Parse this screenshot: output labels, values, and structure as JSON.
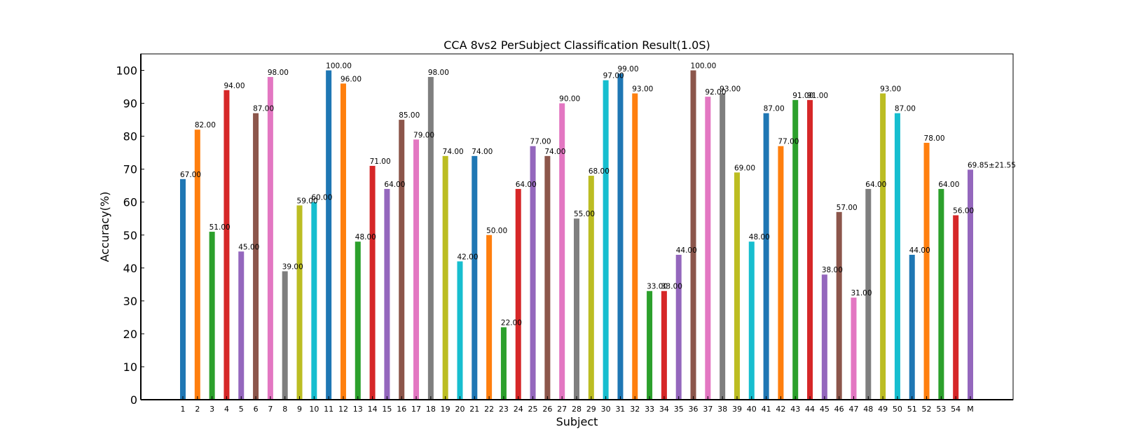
{
  "chart_data": {
    "type": "bar",
    "title": "CCA 8vs2 PerSubject Classification Result(1.0S)",
    "xlabel": "Subject",
    "ylabel": "Accuracy(%)",
    "ylim": [
      0,
      105
    ],
    "yticks": [
      0,
      10,
      20,
      30,
      40,
      50,
      60,
      70,
      80,
      90,
      100
    ],
    "categories": [
      "1",
      "2",
      "3",
      "4",
      "5",
      "6",
      "7",
      "8",
      "9",
      "10",
      "11",
      "12",
      "13",
      "14",
      "15",
      "16",
      "17",
      "18",
      "19",
      "20",
      "21",
      "22",
      "23",
      "24",
      "25",
      "26",
      "27",
      "28",
      "29",
      "30",
      "31",
      "32",
      "33",
      "34",
      "35",
      "36",
      "37",
      "38",
      "39",
      "40",
      "41",
      "42",
      "43",
      "44",
      "45",
      "46",
      "47",
      "48",
      "49",
      "50",
      "51",
      "52",
      "53",
      "54",
      "M"
    ],
    "values": [
      67,
      82,
      51,
      94,
      45,
      87,
      98,
      39,
      59,
      60,
      100,
      96,
      48,
      71,
      64,
      85,
      79,
      98,
      74,
      42,
      74,
      50,
      22,
      64,
      77,
      74,
      90,
      55,
      68,
      97,
      99,
      93,
      33,
      33,
      44,
      100,
      92,
      93,
      69,
      48,
      87,
      77,
      91,
      91,
      38,
      57,
      31,
      64,
      93,
      87,
      44,
      78,
      64,
      56,
      69.85
    ],
    "labels": [
      "67.00",
      "82.00",
      "51.00",
      "94.00",
      "45.00",
      "87.00",
      "98.00",
      "39.00",
      "59.00",
      "60.00",
      "100.00",
      "96.00",
      "48.00",
      "71.00",
      "64.00",
      "85.00",
      "79.00",
      "98.00",
      "74.00",
      "42.00",
      "74.00",
      "50.00",
      "22.00",
      "64.00",
      "77.00",
      "74.00",
      "90.00",
      "55.00",
      "68.00",
      "97.00",
      "99.00",
      "93.00",
      "33.00",
      "33.00",
      "44.00",
      "100.00",
      "92.00",
      "93.00",
      "69.00",
      "48.00",
      "87.00",
      "77.00",
      "91.00",
      "91.00",
      "38.00",
      "57.00",
      "31.00",
      "64.00",
      "93.00",
      "87.00",
      "44.00",
      "78.00",
      "64.00",
      "56.00",
      "69.85±21.55"
    ],
    "colors": [
      "#1f77b4",
      "#ff7f0e",
      "#2ca02c",
      "#d62728",
      "#9467bd",
      "#8c564b",
      "#e377c2",
      "#7f7f7f",
      "#bcbd22",
      "#17becf"
    ],
    "mean_label_color": "#ff0000",
    "grid": false,
    "legend": "none"
  }
}
